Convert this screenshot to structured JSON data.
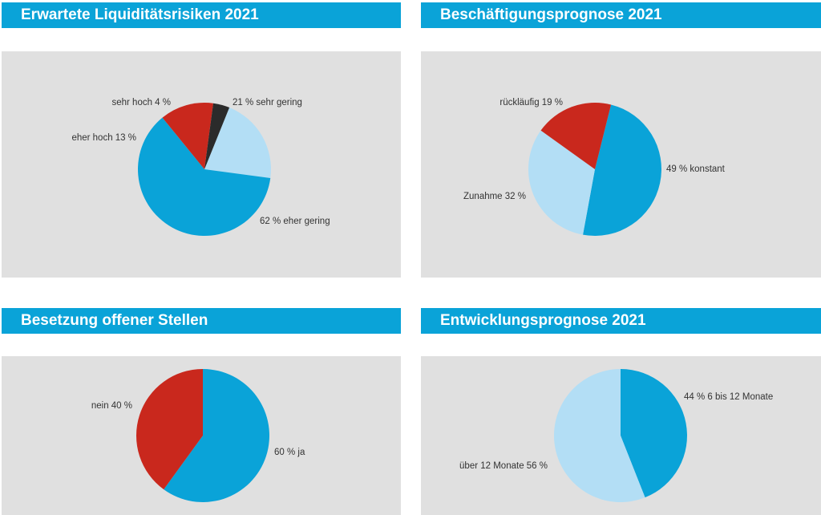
{
  "charts": [
    {
      "title": "Erwartete Liquiditätsrisiken 2021"
    },
    {
      "title": "Beschäftigungsprognose 2021"
    },
    {
      "title": "Besetzung offener Stellen"
    },
    {
      "title": "Entwicklungsprognose 2021"
    }
  ],
  "chart_data": [
    {
      "type": "pie",
      "title": "Erwartete Liquiditätsrisiken 2021",
      "slices": [
        {
          "label": "sehr gering",
          "value": 21,
          "text": "21 %  sehr gering",
          "color": "#b3def5"
        },
        {
          "label": "eher gering",
          "value": 62,
          "text": "62 %  eher gering",
          "color": "#0aa3d8"
        },
        {
          "label": "eher hoch",
          "value": 13,
          "text": "eher hoch  13 %",
          "color": "#c9281d"
        },
        {
          "label": "sehr hoch",
          "value": 4,
          "text": "sehr hoch  4 %",
          "color": "#2b2b2b"
        }
      ]
    },
    {
      "type": "pie",
      "title": "Beschäftigungsprognose 2021",
      "slices": [
        {
          "label": "konstant",
          "value": 49,
          "text": "49 % konstant",
          "color": "#0aa3d8"
        },
        {
          "label": "Zunahme",
          "value": 32,
          "text": "Zunahme  32 %",
          "color": "#b3def5"
        },
        {
          "label": "rückläufig",
          "value": 19,
          "text": "rückläufig  19 %",
          "color": "#c9281d"
        }
      ]
    },
    {
      "type": "pie",
      "title": "Besetzung offener Stellen",
      "slices": [
        {
          "label": "ja",
          "value": 60,
          "text": "60 %  ja",
          "color": "#0aa3d8"
        },
        {
          "label": "nein",
          "value": 40,
          "text": "nein  40 %",
          "color": "#c9281d"
        }
      ]
    },
    {
      "type": "pie",
      "title": "Entwicklungsprognose 2021",
      "slices": [
        {
          "label": "6 bis 12 Monate",
          "value": 44,
          "text": "44 %  6 bis 12 Monate",
          "color": "#0aa3d8"
        },
        {
          "label": "über 12 Monate",
          "value": 56,
          "text": "über 12 Monate 56 %",
          "color": "#b3def5"
        }
      ]
    }
  ]
}
